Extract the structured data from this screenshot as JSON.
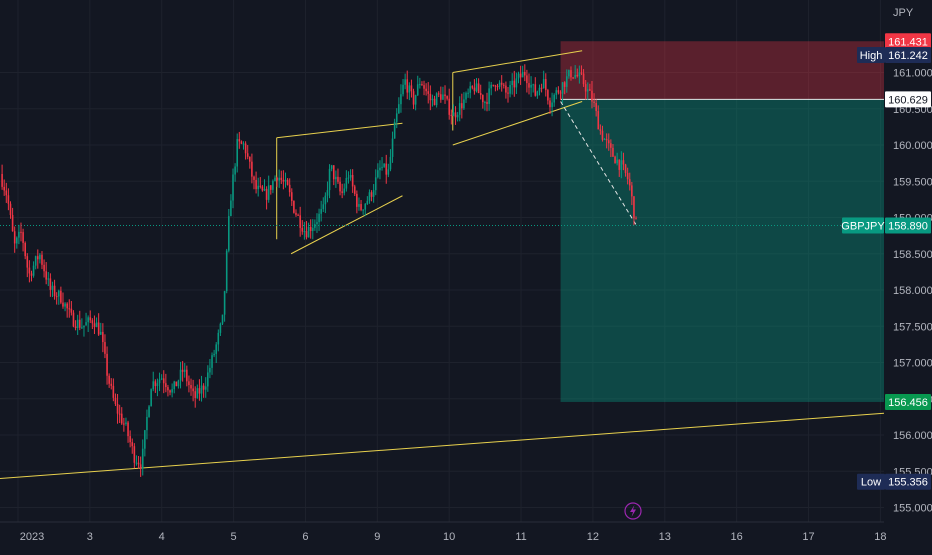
{
  "chart_data": {
    "type": "candlestick",
    "symbol": "GBPJPY",
    "currency": "JPY",
    "ylim": [
      154.8,
      162.0
    ],
    "y_ticks": [
      "155.000",
      "155.500",
      "156.000",
      "156.500",
      "157.000",
      "157.500",
      "158.000",
      "158.500",
      "159.000",
      "159.500",
      "160.000",
      "160.500",
      "161.000"
    ],
    "x_ticks": [
      {
        "label": "2023",
        "x": 0.0
      },
      {
        "label": "3",
        "x": 1.0
      },
      {
        "label": "4",
        "x": 2.0
      },
      {
        "label": "5",
        "x": 3.0
      },
      {
        "label": "6",
        "x": 4.0
      },
      {
        "label": "9",
        "x": 5.0
      },
      {
        "label": "10",
        "x": 6.0
      },
      {
        "label": "11",
        "x": 7.0
      },
      {
        "label": "12",
        "x": 8.0
      },
      {
        "label": "13",
        "x": 9.0
      },
      {
        "label": "16",
        "x": 10.0
      },
      {
        "label": "17",
        "x": 11.0
      },
      {
        "label": "18",
        "x": 12.0
      }
    ],
    "xlim": [
      -0.25,
      12.05
    ],
    "price_path": [
      [
        -0.25,
        159.6
      ],
      [
        -0.15,
        159.3
      ],
      [
        -0.05,
        158.6
      ],
      [
        0.05,
        158.8
      ],
      [
        0.15,
        158.2
      ],
      [
        0.3,
        158.5
      ],
      [
        0.45,
        158.0
      ],
      [
        0.6,
        157.9
      ],
      [
        0.75,
        157.6
      ],
      [
        0.9,
        157.5
      ],
      [
        1.05,
        157.6
      ],
      [
        1.15,
        157.4
      ],
      [
        1.25,
        156.8
      ],
      [
        1.35,
        156.4
      ],
      [
        1.5,
        156.1
      ],
      [
        1.62,
        155.7
      ],
      [
        1.72,
        155.6
      ],
      [
        1.85,
        156.7
      ],
      [
        2.0,
        156.8
      ],
      [
        2.15,
        156.6
      ],
      [
        2.3,
        156.9
      ],
      [
        2.45,
        156.5
      ],
      [
        2.6,
        156.7
      ],
      [
        2.75,
        157.2
      ],
      [
        2.85,
        157.6
      ],
      [
        2.95,
        159.2
      ],
      [
        3.05,
        160.0
      ],
      [
        3.15,
        160.0
      ],
      [
        3.3,
        159.4
      ],
      [
        3.45,
        159.3
      ],
      [
        3.6,
        159.6
      ],
      [
        3.75,
        159.4
      ],
      [
        3.85,
        159.1
      ],
      [
        4.0,
        158.8
      ],
      [
        4.1,
        158.9
      ],
      [
        4.25,
        159.1
      ],
      [
        4.35,
        159.7
      ],
      [
        4.5,
        159.3
      ],
      [
        4.6,
        159.6
      ],
      [
        4.75,
        159.1
      ],
      [
        4.9,
        159.3
      ],
      [
        5.05,
        159.7
      ],
      [
        5.15,
        159.6
      ],
      [
        5.25,
        160.3
      ],
      [
        5.38,
        160.9
      ],
      [
        5.5,
        160.6
      ],
      [
        5.6,
        160.9
      ],
      [
        5.75,
        160.6
      ],
      [
        5.9,
        160.7
      ],
      [
        6.05,
        160.4
      ],
      [
        6.2,
        160.6
      ],
      [
        6.35,
        160.8
      ],
      [
        6.5,
        160.6
      ],
      [
        6.65,
        160.9
      ],
      [
        6.8,
        160.7
      ],
      [
        6.95,
        160.9
      ],
      [
        7.05,
        161.0
      ],
      [
        7.2,
        160.7
      ],
      [
        7.3,
        160.9
      ],
      [
        7.4,
        160.6
      ],
      [
        7.55,
        160.8
      ],
      [
        7.7,
        161.0
      ],
      [
        7.85,
        160.9
      ],
      [
        8.0,
        160.6
      ],
      [
        8.1,
        160.2
      ],
      [
        8.25,
        159.9
      ],
      [
        8.4,
        159.7
      ],
      [
        8.5,
        159.5
      ],
      [
        8.6,
        158.9
      ]
    ],
    "high": {
      "label": "High",
      "value": "161.242",
      "price": 161.242
    },
    "low": {
      "label": "Low",
      "value": "155.356",
      "price": 155.356
    },
    "last": {
      "symbol": "GBPJPY",
      "value": "158.890",
      "price": 158.89
    },
    "position": {
      "type": "short",
      "entry": "160.629",
      "entry_price": 160.629,
      "stop": "161.431",
      "stop_price": 161.431,
      "target": "156.456",
      "target_price": 156.456,
      "x_start": 7.55,
      "x_end": 12.05,
      "stop_color": "#f23645",
      "target_color": "#089981"
    },
    "channels": [
      {
        "upper": [
          [
            3.6,
            160.1
          ],
          [
            5.35,
            160.3
          ]
        ],
        "lower": [
          [
            3.8,
            158.5
          ],
          [
            5.35,
            159.3
          ]
        ]
      },
      {
        "upper": [
          [
            6.05,
            161.0
          ],
          [
            7.85,
            161.3
          ]
        ],
        "lower": [
          [
            6.05,
            160.0
          ],
          [
            7.85,
            160.6
          ]
        ]
      }
    ],
    "trendline": [
      [
        -0.25,
        155.4
      ],
      [
        12.05,
        156.3
      ]
    ],
    "projection": [
      [
        7.55,
        160.6
      ],
      [
        8.6,
        158.9
      ]
    ],
    "line_color": "#e8d14e",
    "grid": true,
    "up_color": "#089981",
    "down_color": "#f23645"
  },
  "icons": {
    "bolt": "lightning-icon"
  }
}
